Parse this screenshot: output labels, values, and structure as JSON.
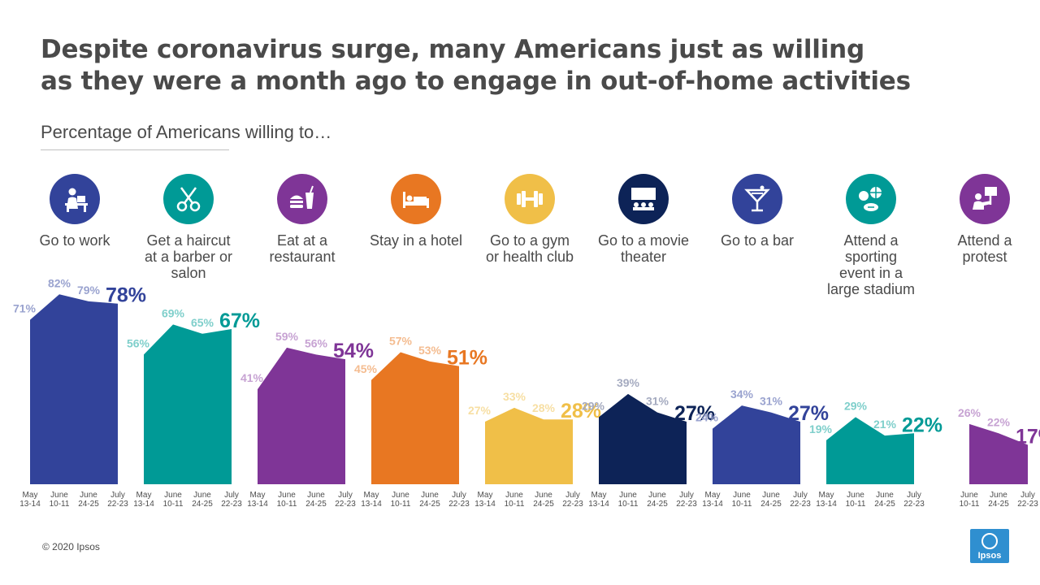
{
  "title_lines": [
    "Despite coronavirus surge, many Americans just as willing",
    "as they were a month ago to engage in out-of-home activities"
  ],
  "subtitle": "Percentage of Americans willing to…",
  "footer": "© 2020 Ipsos",
  "logo_text": "Ipsos",
  "chart_data": {
    "type": "area",
    "title": "Despite coronavirus surge, many Americans just as willing as they were a month ago to engage in out-of-home activities",
    "subtitle": "Percentage of Americans willing to…",
    "ylim": [
      0,
      100
    ],
    "grid": false,
    "panels": [
      {
        "label_lines": [
          "Go to work"
        ],
        "icon": "work-desk-icon",
        "color": "#32439a",
        "label_color": "#9aa3cf",
        "points": [
          {
            "date": "May 13-14",
            "value": 71
          },
          {
            "date": "June 10-11",
            "value": 82
          },
          {
            "date": "June 24-25",
            "value": 79
          },
          {
            "date": "July 22-23",
            "value": 78
          }
        ]
      },
      {
        "label_lines": [
          "Get a haircut",
          "at a barber or",
          "salon"
        ],
        "icon": "scissors-icon",
        "color": "#009a96",
        "label_color": "#7fcfcb",
        "points": [
          {
            "date": "May 13-14",
            "value": 56
          },
          {
            "date": "June 10-11",
            "value": 69
          },
          {
            "date": "June 24-25",
            "value": 65
          },
          {
            "date": "July 22-23",
            "value": 67
          }
        ]
      },
      {
        "label_lines": [
          "Eat at a",
          "restaurant"
        ],
        "icon": "burger-drink-icon",
        "color": "#7f3597",
        "label_color": "#c7a3d3",
        "points": [
          {
            "date": "May 13-14",
            "value": 41
          },
          {
            "date": "June 10-11",
            "value": 59
          },
          {
            "date": "June 24-25",
            "value": 56
          },
          {
            "date": "July 22-23",
            "value": 54
          }
        ]
      },
      {
        "label_lines": [
          "Stay in a hotel"
        ],
        "icon": "bed-icon",
        "color": "#e87722",
        "label_color": "#f4bc90",
        "points": [
          {
            "date": "May 13-14",
            "value": 45
          },
          {
            "date": "June 10-11",
            "value": 57
          },
          {
            "date": "June 24-25",
            "value": 53
          },
          {
            "date": "July 22-23",
            "value": 51
          }
        ]
      },
      {
        "label_lines": [
          "Go to a gym",
          "or health club"
        ],
        "icon": "dumbbell-icon",
        "color": "#f0bf48",
        "label_color": "#f7dfa3",
        "points": [
          {
            "date": "May 13-14",
            "value": 27
          },
          {
            "date": "June 10-11",
            "value": 33
          },
          {
            "date": "June 24-25",
            "value": 28
          },
          {
            "date": "July 22-23",
            "value": 28
          }
        ]
      },
      {
        "label_lines": [
          "Go to a movie",
          "theater"
        ],
        "icon": "movie-theater-icon",
        "color": "#0d2357",
        "label_color": "#a5abc0",
        "points": [
          {
            "date": "May 13-14",
            "value": 29
          },
          {
            "date": "June 10-11",
            "value": 39
          },
          {
            "date": "June 24-25",
            "value": 31
          },
          {
            "date": "July 22-23",
            "value": 27
          }
        ]
      },
      {
        "label_lines": [
          "Go to a bar"
        ],
        "icon": "cocktail-glass-icon",
        "color": "#32439a",
        "label_color": "#9aa3cf",
        "points": [
          {
            "date": "May 13-14",
            "value": 24
          },
          {
            "date": "June 10-11",
            "value": 34
          },
          {
            "date": "June 24-25",
            "value": 31
          },
          {
            "date": "July 22-23",
            "value": 27
          }
        ]
      },
      {
        "label_lines": [
          "Attend a",
          "sporting",
          "event in a",
          "large stadium"
        ],
        "icon": "sports-balls-icon",
        "color": "#009a96",
        "label_color": "#7fcfcb",
        "points": [
          {
            "date": "May 13-14",
            "value": 19
          },
          {
            "date": "June 10-11",
            "value": 29
          },
          {
            "date": "June 24-25",
            "value": 21
          },
          {
            "date": "July 22-23",
            "value": 22
          }
        ]
      },
      {
        "label_lines": [
          "Attend a",
          "protest"
        ],
        "icon": "protest-sign-icon",
        "color": "#7f3597",
        "label_color": "#c7a3d3",
        "points": [
          {
            "date": "June 10-11",
            "value": 26
          },
          {
            "date": "June 24-25",
            "value": 22
          },
          {
            "date": "July 22-23",
            "value": 17
          }
        ]
      }
    ]
  }
}
